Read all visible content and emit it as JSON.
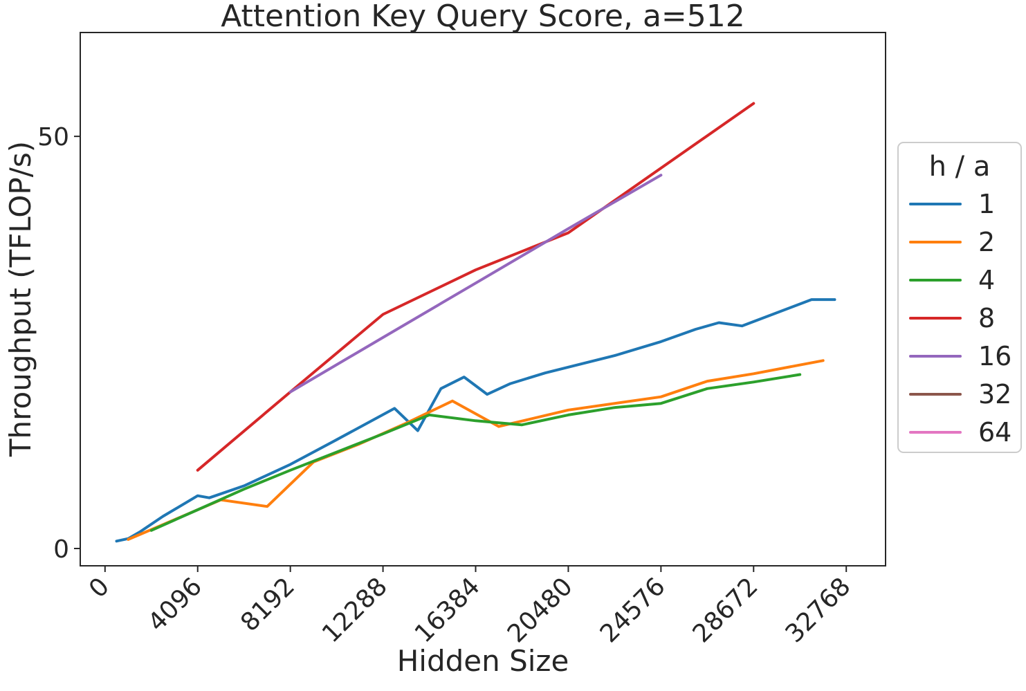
{
  "chart_data": {
    "type": "line",
    "title": "Attention Key Query Score, a=512",
    "xlabel": "Hidden Size",
    "ylabel": "Throughput (TFLOP/s)",
    "xlim": [
      -1095,
      34505
    ],
    "ylim": [
      -2.1,
      62.6
    ],
    "x_ticks": [
      0,
      4096,
      8192,
      12288,
      16384,
      20480,
      24576,
      28672,
      32768
    ],
    "y_ticks": [
      0,
      50
    ],
    "x_tick_rotation": 45,
    "grid": false,
    "legend": {
      "title": "h / a",
      "position": "right-outside"
    },
    "series": [
      {
        "name": "1",
        "color": "#1f77b4",
        "points": [
          [
            512,
            0.9
          ],
          [
            1024,
            1.2
          ],
          [
            1536,
            2.0
          ],
          [
            2560,
            3.9
          ],
          [
            4096,
            6.4
          ],
          [
            4608,
            6.15
          ],
          [
            6144,
            7.6
          ],
          [
            8192,
            10.2
          ],
          [
            10240,
            13.2
          ],
          [
            12800,
            17.0
          ],
          [
            13824,
            14.3
          ],
          [
            14848,
            19.4
          ],
          [
            15872,
            20.8
          ],
          [
            16896,
            18.7
          ],
          [
            17920,
            20.0
          ],
          [
            19456,
            21.3
          ],
          [
            20480,
            22.0
          ],
          [
            22528,
            23.4
          ],
          [
            24576,
            25.1
          ],
          [
            26112,
            26.6
          ],
          [
            27136,
            27.4
          ],
          [
            28160,
            27.0
          ],
          [
            31232,
            30.2
          ],
          [
            32256,
            30.2
          ]
        ]
      },
      {
        "name": "2",
        "color": "#ff7f0e",
        "points": [
          [
            1024,
            1.1
          ],
          [
            2048,
            2.3
          ],
          [
            3072,
            3.5
          ],
          [
            5120,
            5.9
          ],
          [
            7168,
            5.1
          ],
          [
            9216,
            10.5
          ],
          [
            11264,
            12.7
          ],
          [
            13312,
            15.2
          ],
          [
            15360,
            17.9
          ],
          [
            17408,
            14.8
          ],
          [
            20480,
            16.8
          ],
          [
            24576,
            18.4
          ],
          [
            26624,
            20.3
          ],
          [
            28672,
            21.2
          ],
          [
            31744,
            22.8
          ]
        ]
      },
      {
        "name": "4",
        "color": "#2ca02c",
        "points": [
          [
            2048,
            2.2
          ],
          [
            4096,
            4.7
          ],
          [
            6144,
            7.2
          ],
          [
            8192,
            9.5
          ],
          [
            10240,
            11.7
          ],
          [
            12288,
            13.9
          ],
          [
            14336,
            16.2
          ],
          [
            16384,
            15.5
          ],
          [
            18432,
            15.0
          ],
          [
            20480,
            16.2
          ],
          [
            22528,
            17.1
          ],
          [
            24576,
            17.6
          ],
          [
            26624,
            19.4
          ],
          [
            28672,
            20.2
          ],
          [
            30720,
            21.1
          ]
        ]
      },
      {
        "name": "8",
        "color": "#d62728",
        "points": [
          [
            4096,
            9.5
          ],
          [
            8192,
            19.0
          ],
          [
            12288,
            28.4
          ],
          [
            16384,
            33.8
          ],
          [
            20480,
            38.3
          ],
          [
            28672,
            54.0
          ]
        ]
      },
      {
        "name": "16",
        "color": "#9467bd",
        "points": [
          [
            8192,
            19.0
          ],
          [
            12288,
            25.6
          ],
          [
            16384,
            32.2
          ],
          [
            20480,
            38.8
          ],
          [
            24576,
            45.3
          ]
        ]
      },
      {
        "name": "32",
        "color": "#8c564b",
        "points": []
      },
      {
        "name": "64",
        "color": "#e377c2",
        "points": []
      }
    ]
  }
}
